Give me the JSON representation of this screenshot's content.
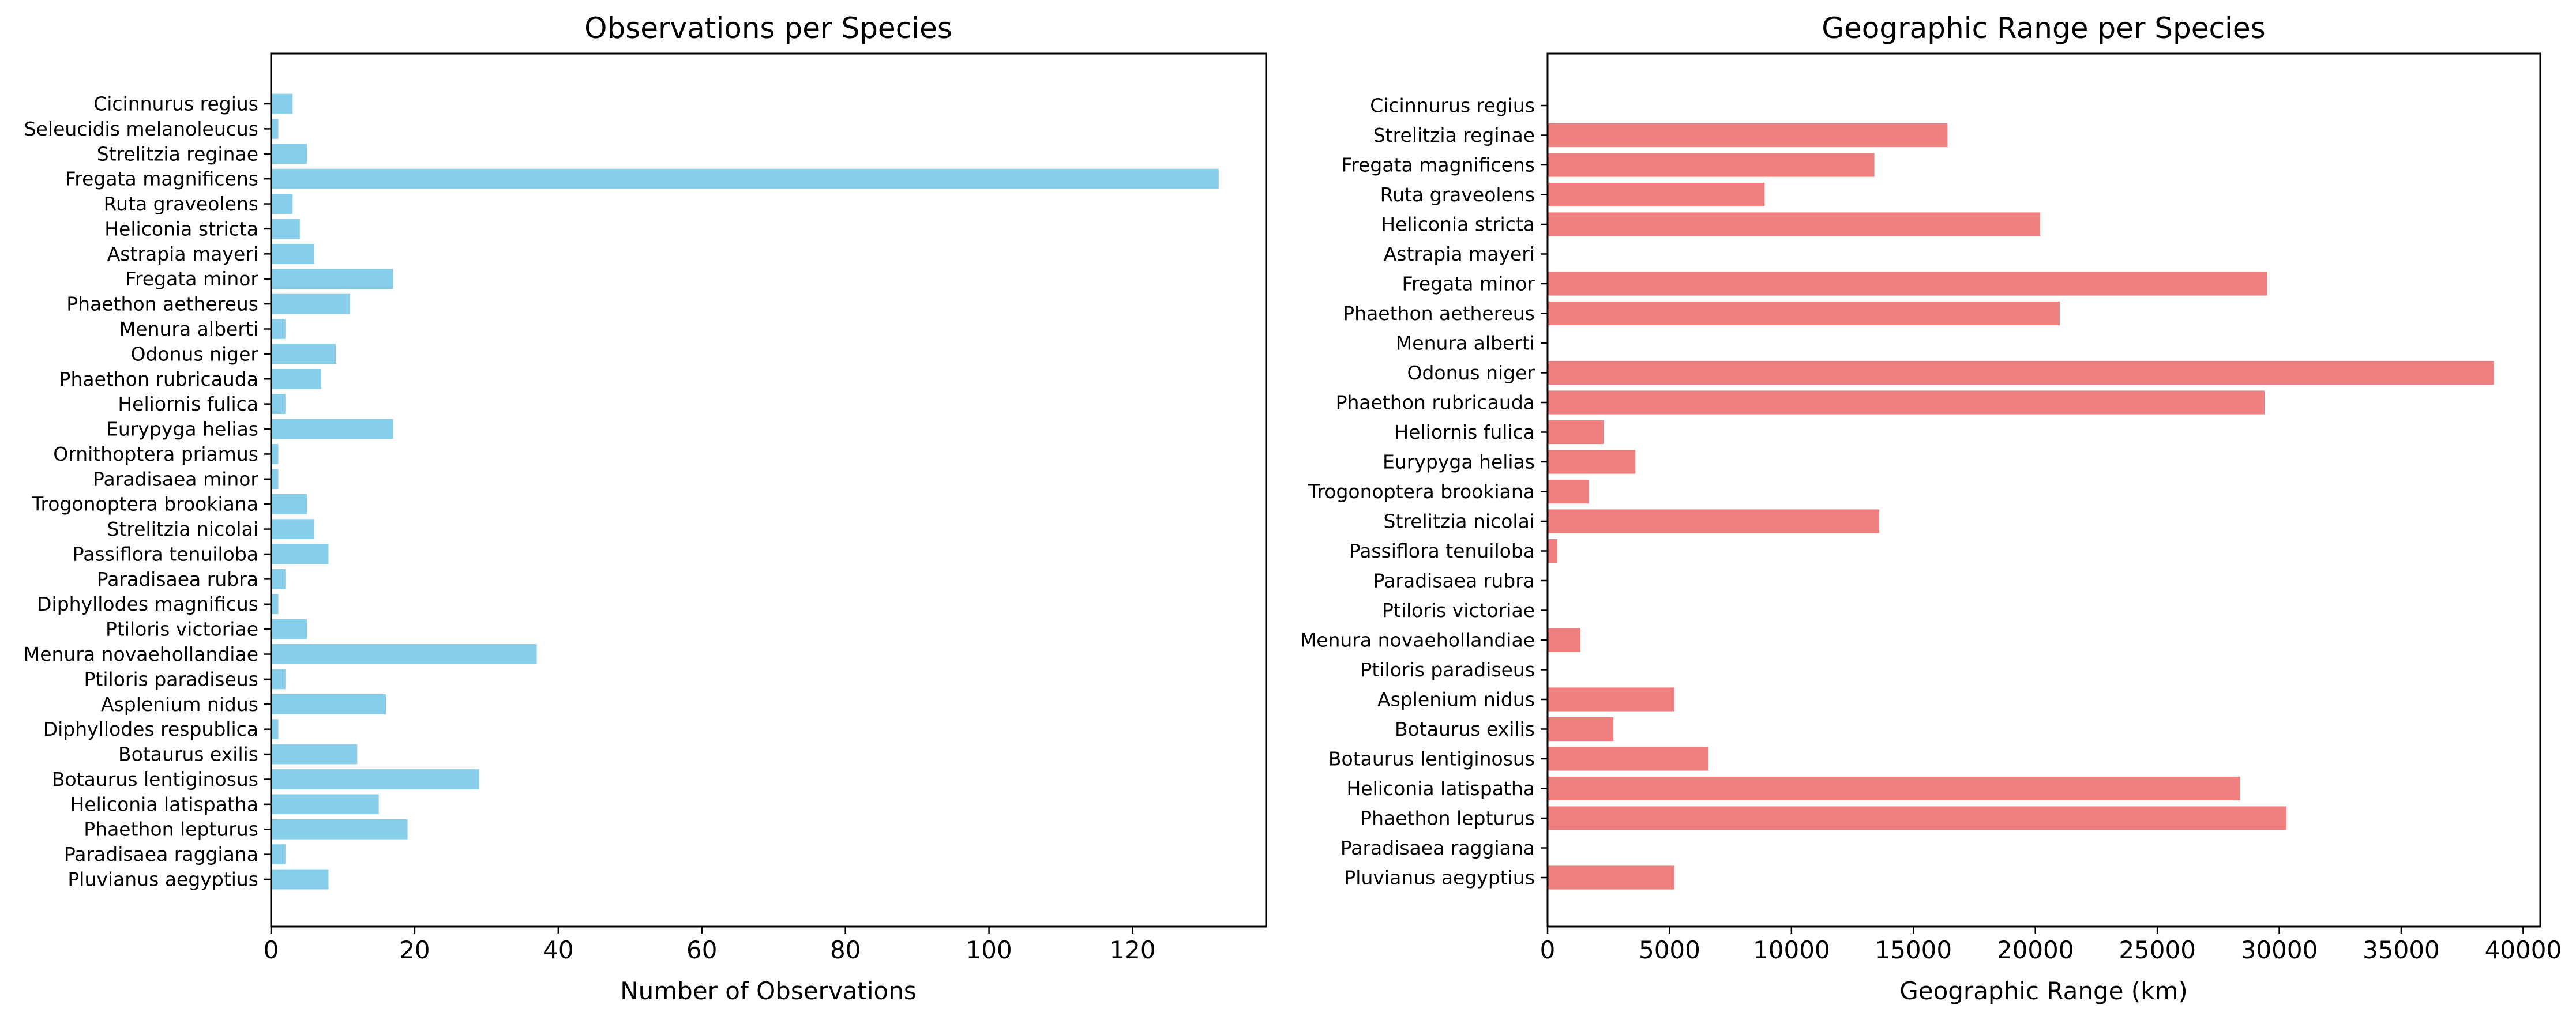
{
  "colors": {
    "left_bars": "#87CEEB",
    "right_bars": "#F08080",
    "axes": "#000000"
  },
  "chart_data": [
    {
      "type": "bar",
      "orientation": "horizontal",
      "title": "Observations per Species",
      "xlabel": "Number of Observations",
      "ylabel": "",
      "xlim": [
        0,
        138.6
      ],
      "xticks": [
        0,
        20,
        40,
        60,
        80,
        100,
        120
      ],
      "xtick_labels": [
        "0",
        "20",
        "40",
        "60",
        "80",
        "100",
        "120"
      ],
      "grid": false,
      "categories": [
        "Cicinnurus regius",
        "Seleucidis melanoleucus",
        "Strelitzia reginae",
        "Fregata magnificens",
        "Ruta graveolens",
        "Heliconia stricta",
        "Astrapia mayeri",
        "Fregata minor",
        "Phaethon aethereus",
        "Menura alberti",
        "Odonus niger",
        "Phaethon rubricauda",
        "Heliornis fulica",
        "Eurypyga helias",
        "Ornithoptera priamus",
        "Paradisaea minor",
        "Trogonoptera brookiana",
        "Strelitzia nicolai",
        "Passiflora tenuiloba",
        "Paradisaea rubra",
        "Diphyllodes magnificus",
        "Ptiloris victoriae",
        "Menura novaehollandiae",
        "Ptiloris paradiseus",
        "Asplenium nidus",
        "Diphyllodes respublica",
        "Botaurus exilis",
        "Botaurus lentiginosus",
        "Heliconia latispatha",
        "Phaethon lepturus",
        "Paradisaea raggiana",
        "Pluvianus aegyptius"
      ],
      "values": [
        3,
        1,
        5,
        132,
        3,
        4,
        6,
        17,
        11,
        2,
        9,
        7,
        2,
        17,
        1,
        1,
        5,
        6,
        8,
        2,
        1,
        5,
        37,
        2,
        16,
        1,
        12,
        29,
        15,
        19,
        2,
        8
      ]
    },
    {
      "type": "bar",
      "orientation": "horizontal",
      "title": "Geographic Range per Species",
      "xlabel": "Geographic Range (km)",
      "ylabel": "",
      "xlim": [
        0,
        40700
      ],
      "xticks": [
        0,
        5000,
        10000,
        15000,
        20000,
        25000,
        30000,
        35000,
        40000
      ],
      "xtick_labels": [
        "0",
        "5000",
        "10000",
        "15000",
        "20000",
        "25000",
        "30000",
        "35000",
        "40000"
      ],
      "grid": false,
      "categories": [
        "Cicinnurus regius",
        "Strelitzia reginae",
        "Fregata magnificens",
        "Ruta graveolens",
        "Heliconia stricta",
        "Astrapia mayeri",
        "Fregata minor",
        "Phaethon aethereus",
        "Menura alberti",
        "Odonus niger",
        "Phaethon rubricauda",
        "Heliornis fulica",
        "Eurypyga helias",
        "Trogonoptera brookiana",
        "Strelitzia nicolai",
        "Passiflora tenuiloba",
        "Paradisaea rubra",
        "Ptiloris victoriae",
        "Menura novaehollandiae",
        "Ptiloris paradiseus",
        "Asplenium nidus",
        "Botaurus exilis",
        "Botaurus lentiginosus",
        "Heliconia latispatha",
        "Phaethon lepturus",
        "Paradisaea raggiana",
        "Pluvianus aegyptius"
      ],
      "values": [
        0,
        16400,
        13400,
        8900,
        20200,
        0,
        29500,
        21000,
        0,
        38800,
        29400,
        2300,
        3600,
        1700,
        13600,
        400,
        0,
        0,
        1350,
        0,
        5200,
        2700,
        6600,
        28400,
        30300,
        0,
        5200
      ]
    }
  ]
}
